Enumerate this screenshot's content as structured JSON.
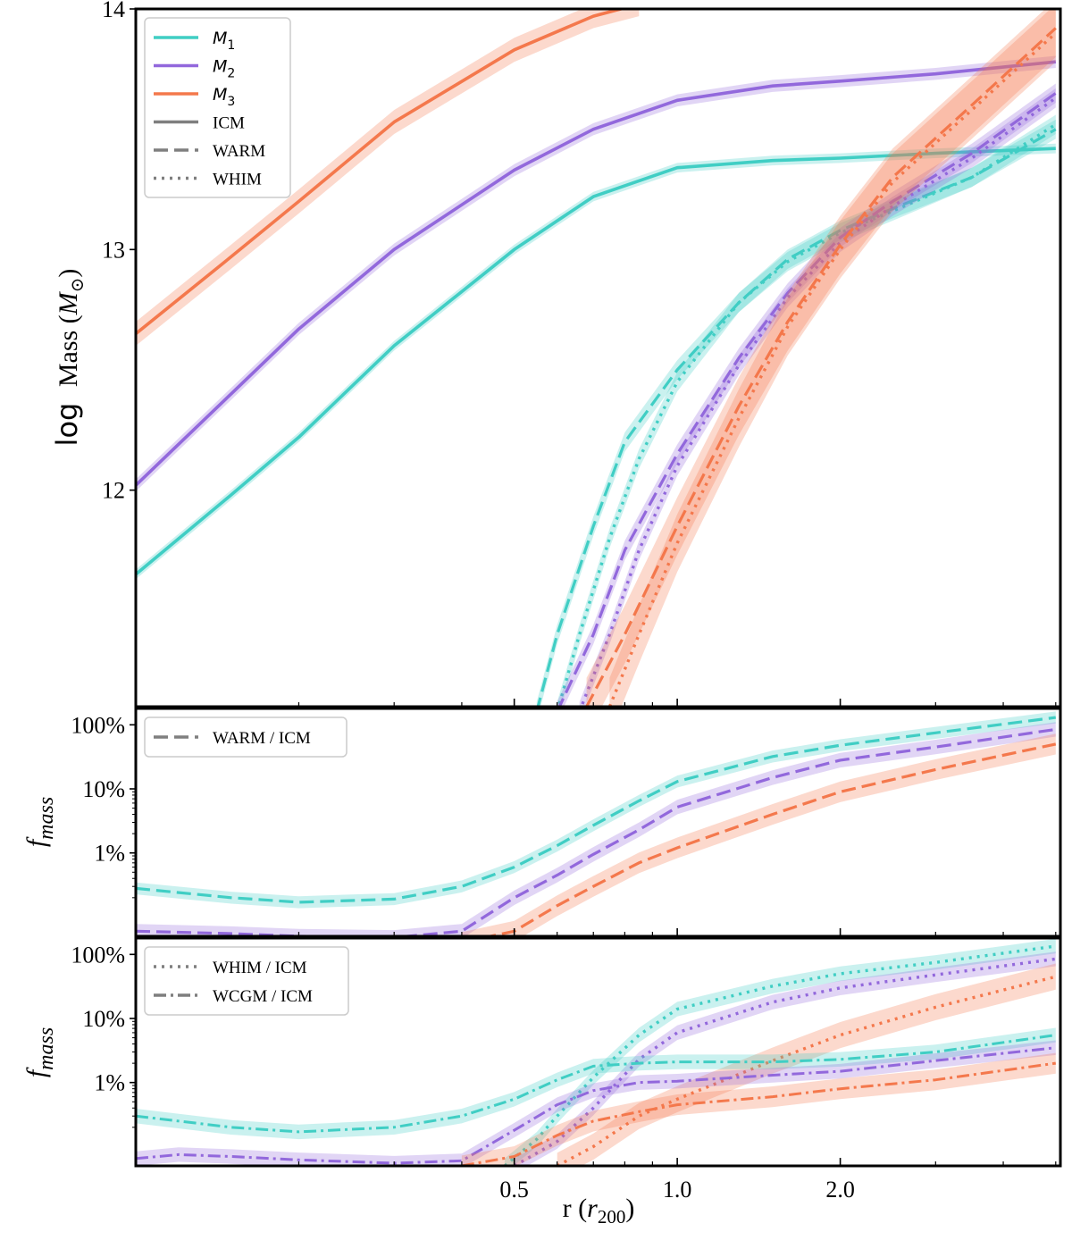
{
  "colors": {
    "M1": "#40cec4",
    "M2": "#9268dc",
    "M3": "#f4784c",
    "legend_gray": "#7f7f7f"
  },
  "chart_data": [
    {
      "panel": "top",
      "type": "line",
      "xlabel": "r (r200)",
      "xlabel_parts": {
        "base": "r (",
        "sym": "r",
        "sub": "200",
        "close": ")"
      },
      "ylabel": "log Mass (M⊙)",
      "ylabel_parts": {
        "log": "log",
        "mass": "Mass (",
        "sym": "M",
        "sub": "⊙",
        "close": ")"
      },
      "xscale": "log",
      "xlim": [
        0.1,
        5.1
      ],
      "ylim": [
        11.1,
        14.0
      ],
      "xticks": [
        0.5,
        1.0,
        2.0
      ],
      "xtick_labels": [
        "0.5",
        "1.0",
        "2.0"
      ],
      "yticks": [
        12,
        13,
        14
      ],
      "ytick_labels": [
        "12",
        "13",
        "14"
      ],
      "legend_position": "upper-left",
      "legend": [
        {
          "label": "M",
          "sub": "1",
          "style": "solid",
          "color_key": "M1",
          "math": true
        },
        {
          "label": "M",
          "sub": "2",
          "style": "solid",
          "color_key": "M2",
          "math": true
        },
        {
          "label": "M",
          "sub": "3",
          "style": "solid",
          "color_key": "M3",
          "math": true
        },
        {
          "label": "ICM",
          "sub": "",
          "style": "solid",
          "color_key": "legend_gray",
          "math": false
        },
        {
          "label": "WARM",
          "sub": "",
          "style": "dashed",
          "color_key": "legend_gray",
          "math": false
        },
        {
          "label": "WHIM",
          "sub": "",
          "style": "dotted",
          "color_key": "legend_gray",
          "math": false
        }
      ],
      "series": [
        {
          "name": "M1 ICM",
          "color_key": "M1",
          "style": "solid",
          "band": 0.02,
          "x": [
            0.1,
            0.15,
            0.2,
            0.3,
            0.5,
            0.7,
            1.0,
            1.5,
            2.0,
            3.0,
            5.0
          ],
          "y": [
            11.65,
            11.98,
            12.22,
            12.6,
            13.0,
            13.22,
            13.34,
            13.37,
            13.38,
            13.4,
            13.42
          ]
        },
        {
          "name": "M2 ICM",
          "color_key": "M2",
          "style": "solid",
          "band": 0.025,
          "x": [
            0.1,
            0.15,
            0.2,
            0.3,
            0.5,
            0.7,
            1.0,
            1.5,
            2.0,
            3.0,
            5.0
          ],
          "y": [
            12.02,
            12.4,
            12.67,
            13.0,
            13.33,
            13.5,
            13.62,
            13.68,
            13.7,
            13.73,
            13.78
          ]
        },
        {
          "name": "M3 ICM",
          "color_key": "M3",
          "style": "solid",
          "band": 0.05,
          "x": [
            0.1,
            0.15,
            0.2,
            0.3,
            0.5,
            0.7,
            0.85
          ],
          "y": [
            12.65,
            12.97,
            13.2,
            13.53,
            13.83,
            13.97,
            14.02
          ]
        },
        {
          "name": "M1 WARM",
          "color_key": "M1",
          "style": "dashed",
          "band": 0.04,
          "x": [
            0.55,
            0.6,
            0.7,
            0.8,
            1.0,
            1.3,
            1.6,
            2.0,
            2.5,
            3.5,
            5.0
          ],
          "y": [
            11.08,
            11.4,
            11.85,
            12.2,
            12.5,
            12.78,
            12.96,
            13.08,
            13.17,
            13.3,
            13.5
          ]
        },
        {
          "name": "M1 WHIM",
          "color_key": "M1",
          "style": "dotted",
          "band": 0.04,
          "x": [
            0.6,
            0.66,
            0.75,
            0.85,
            1.0,
            1.3,
            1.6,
            2.0,
            2.5,
            3.5,
            5.0
          ],
          "y": [
            11.08,
            11.4,
            11.8,
            12.13,
            12.45,
            12.78,
            12.95,
            13.07,
            13.16,
            13.3,
            13.52
          ]
        },
        {
          "name": "M2 WARM",
          "color_key": "M2",
          "style": "dashed",
          "band": 0.04,
          "x": [
            0.6,
            0.7,
            0.8,
            1.0,
            1.3,
            1.6,
            2.0,
            2.5,
            3.5,
            5.0
          ],
          "y": [
            11.08,
            11.4,
            11.75,
            12.15,
            12.55,
            12.82,
            13.05,
            13.2,
            13.4,
            13.65
          ]
        },
        {
          "name": "M2 WHIM",
          "color_key": "M2",
          "style": "dotted",
          "band": 0.04,
          "x": [
            0.66,
            0.75,
            0.85,
            1.0,
            1.3,
            1.6,
            2.0,
            2.5,
            3.5,
            5.0
          ],
          "y": [
            11.08,
            11.4,
            11.75,
            12.1,
            12.52,
            12.8,
            13.03,
            13.18,
            13.38,
            13.63
          ]
        },
        {
          "name": "M3 WARM",
          "color_key": "M3",
          "style": "dashed",
          "band": 0.12,
          "x": [
            0.68,
            0.8,
            1.0,
            1.3,
            1.6,
            2.0,
            2.5,
            3.5,
            5.0
          ],
          "y": [
            11.1,
            11.4,
            11.85,
            12.35,
            12.7,
            13.02,
            13.3,
            13.6,
            13.92
          ]
        },
        {
          "name": "M3 WHIM",
          "color_key": "M3",
          "style": "dotted",
          "band": 0.12,
          "x": [
            0.75,
            0.85,
            1.0,
            1.3,
            1.6,
            2.0,
            2.5,
            3.5,
            5.0
          ],
          "y": [
            11.1,
            11.4,
            11.78,
            12.3,
            12.68,
            13.0,
            13.28,
            13.58,
            13.9
          ]
        }
      ]
    },
    {
      "panel": "middle",
      "type": "line",
      "ylabel": "f_mass",
      "ylabel_parts": {
        "base": "f",
        "sub": "mass"
      },
      "xscale": "log",
      "yscale": "log",
      "xlim": [
        0.1,
        5.1
      ],
      "ylim": [
        0.05,
        180
      ],
      "xticks": [
        0.5,
        1.0,
        2.0
      ],
      "yticks": [
        1,
        10,
        100
      ],
      "ytick_labels": [
        "1%",
        "10%",
        "100%"
      ],
      "legend_position": "upper-left",
      "legend": [
        {
          "label": "WARM / ICM",
          "style": "dashed",
          "color_key": "legend_gray"
        }
      ],
      "series": [
        {
          "name": "M1 WARM/ICM",
          "color_key": "M1",
          "style": "dashed",
          "band": 0.08,
          "x": [
            0.1,
            0.15,
            0.2,
            0.3,
            0.4,
            0.5,
            0.6,
            0.7,
            0.85,
            1.0,
            1.5,
            2.0,
            3.0,
            5.0
          ],
          "y": [
            0.28,
            0.2,
            0.17,
            0.19,
            0.3,
            0.6,
            1.3,
            2.7,
            6.5,
            13,
            32,
            48,
            75,
            130
          ]
        },
        {
          "name": "M2 WARM/ICM",
          "color_key": "M2",
          "style": "dashed",
          "band": 0.1,
          "x": [
            0.1,
            0.15,
            0.2,
            0.3,
            0.4,
            0.5,
            0.6,
            0.7,
            0.85,
            1.0,
            1.5,
            2.0,
            3.0,
            5.0
          ],
          "y": [
            0.06,
            0.055,
            0.05,
            0.048,
            0.06,
            0.2,
            0.45,
            0.95,
            2.3,
            5.2,
            15,
            28,
            45,
            85
          ]
        },
        {
          "name": "M3 WARM/ICM",
          "color_key": "M3",
          "style": "dashed",
          "band": 0.15,
          "x": [
            0.4,
            0.5,
            0.6,
            0.7,
            0.85,
            1.0,
            1.5,
            2.0,
            3.0,
            5.0
          ],
          "y": [
            0.04,
            0.06,
            0.15,
            0.3,
            0.7,
            1.2,
            4,
            9,
            20,
            50
          ]
        }
      ]
    },
    {
      "panel": "bottom",
      "type": "line",
      "ylabel": "f_mass",
      "ylabel_parts": {
        "base": "f",
        "sub": "mass"
      },
      "xscale": "log",
      "yscale": "log",
      "xlim": [
        0.1,
        5.1
      ],
      "ylim": [
        0.05,
        180
      ],
      "xticks": [
        0.5,
        1.0,
        2.0
      ],
      "yticks": [
        1,
        10,
        100
      ],
      "ytick_labels": [
        "1%",
        "10%",
        "100%"
      ],
      "legend_position": "upper-left",
      "legend": [
        {
          "label": "WHIM / ICM",
          "style": "dotted",
          "color_key": "legend_gray"
        },
        {
          "label": "WCGM / ICM",
          "style": "dashdot",
          "color_key": "legend_gray"
        }
      ],
      "series": [
        {
          "name": "M1 WHIM/ICM",
          "color_key": "M1",
          "style": "dotted",
          "band": 0.1,
          "x": [
            0.48,
            0.55,
            0.6,
            0.7,
            0.85,
            1.0,
            1.5,
            2.0,
            3.0,
            5.0
          ],
          "y": [
            0.05,
            0.13,
            0.3,
            1.2,
            5.5,
            14,
            32,
            50,
            75,
            135
          ]
        },
        {
          "name": "M2 WHIM/ICM",
          "color_key": "M2",
          "style": "dotted",
          "band": 0.1,
          "x": [
            0.5,
            0.6,
            0.7,
            0.85,
            1.0,
            1.5,
            2.0,
            3.0,
            5.0
          ],
          "y": [
            0.05,
            0.12,
            0.4,
            2.3,
            6.0,
            18,
            30,
            48,
            85
          ]
        },
        {
          "name": "M3 WHIM/ICM",
          "color_key": "M3",
          "style": "dotted",
          "band": 0.2,
          "x": [
            0.6,
            0.7,
            0.85,
            1.0,
            1.5,
            2.0,
            3.0,
            5.0
          ],
          "y": [
            0.05,
            0.1,
            0.3,
            0.55,
            2.2,
            5.5,
            15,
            45
          ]
        },
        {
          "name": "M1 WCGM/ICM",
          "color_key": "M1",
          "style": "dashdot",
          "band": 0.1,
          "x": [
            0.1,
            0.15,
            0.2,
            0.3,
            0.4,
            0.5,
            0.6,
            0.7,
            0.85,
            1.0,
            1.5,
            2.0,
            3.0,
            5.0
          ],
          "y": [
            0.3,
            0.2,
            0.17,
            0.2,
            0.3,
            0.55,
            1.1,
            1.8,
            2.0,
            2.1,
            2.1,
            2.3,
            3.0,
            5.5
          ]
        },
        {
          "name": "M2 WCGM/ICM",
          "color_key": "M2",
          "style": "dashdot",
          "band": 0.1,
          "x": [
            0.1,
            0.12,
            0.15,
            0.2,
            0.3,
            0.4,
            0.5,
            0.6,
            0.7,
            0.85,
            1.0,
            1.5,
            2.0,
            3.0,
            5.0
          ],
          "y": [
            0.065,
            0.075,
            0.07,
            0.062,
            0.055,
            0.06,
            0.18,
            0.45,
            0.75,
            1.0,
            1.05,
            1.3,
            1.5,
            2.2,
            3.5
          ]
        },
        {
          "name": "M3 WCGM/ICM",
          "color_key": "M3",
          "style": "dashdot",
          "band": 0.15,
          "x": [
            0.4,
            0.5,
            0.6,
            0.7,
            0.85,
            1.0,
            1.5,
            2.0,
            3.0,
            5.0
          ],
          "y": [
            0.05,
            0.07,
            0.15,
            0.25,
            0.35,
            0.45,
            0.6,
            0.8,
            1.1,
            2.0
          ]
        }
      ]
    }
  ]
}
